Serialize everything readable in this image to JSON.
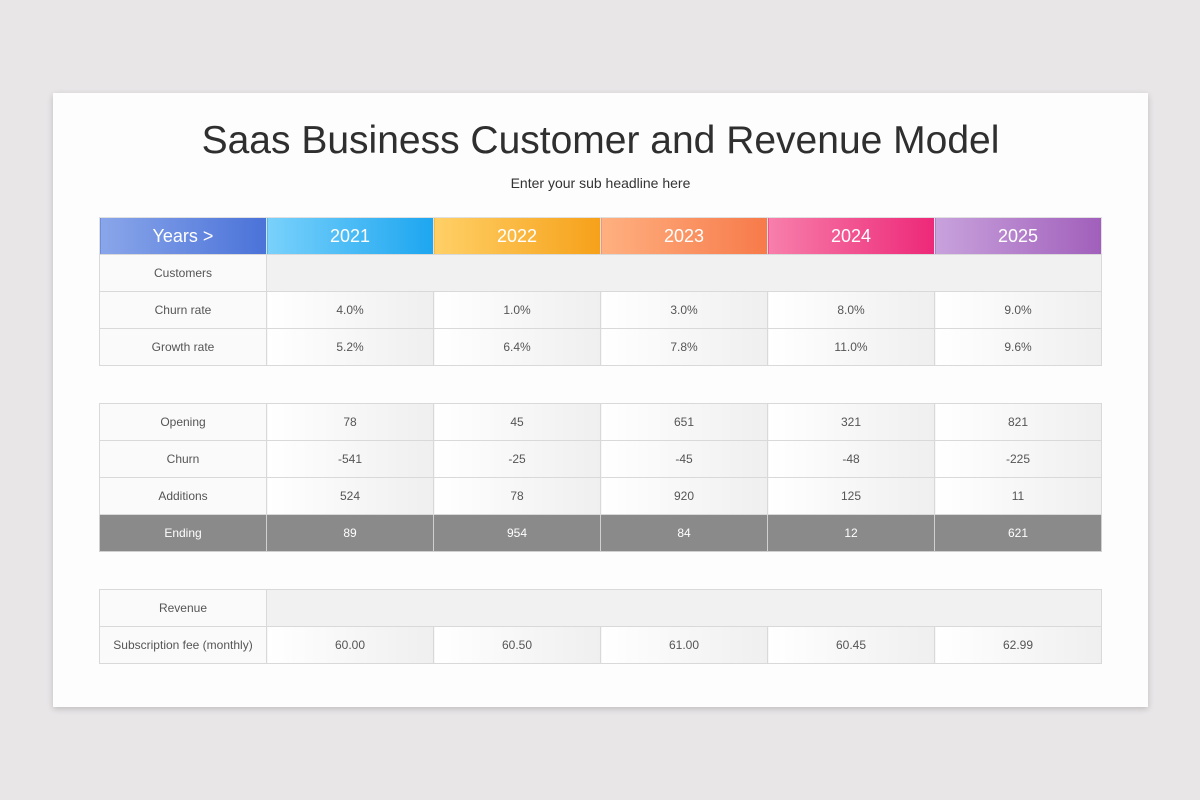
{
  "header": {
    "title": "Saas Business Customer and Revenue Model",
    "subtitle": "Enter your sub headline here"
  },
  "years_header": {
    "label": "Years >",
    "label_gradient": [
      "#8aa6ea",
      "#4a72d8"
    ],
    "years": [
      {
        "label": "2021",
        "gradient": [
          "#79d1fb",
          "#1da6f0"
        ]
      },
      {
        "label": "2022",
        "gradient": [
          "#ffd067",
          "#f6a11a"
        ]
      },
      {
        "label": "2023",
        "gradient": [
          "#ffb080",
          "#f77a4a"
        ]
      },
      {
        "label": "2024",
        "gradient": [
          "#f77fab",
          "#ed2878"
        ]
      },
      {
        "label": "2025",
        "gradient": [
          "#c8a2dc",
          "#a15fbb"
        ]
      }
    ]
  },
  "customers_table": {
    "group_label": "Customers",
    "rows": [
      {
        "label": "Churn rate",
        "values": [
          "4.0%",
          "1.0%",
          "3.0%",
          "8.0%",
          "9.0%"
        ]
      },
      {
        "label": "Growth rate",
        "values": [
          "5.2%",
          "6.4%",
          "7.8%",
          "11.0%",
          "9.6%"
        ]
      }
    ]
  },
  "counts_table": {
    "rows": [
      {
        "label": "Opening",
        "values": [
          "78",
          "45",
          "651",
          "321",
          "821"
        ]
      },
      {
        "label": "Churn",
        "values": [
          "-541",
          "-25",
          "-45",
          "-48",
          "-225"
        ]
      },
      {
        "label": "Additions",
        "values": [
          "524",
          "78",
          "920",
          "125",
          "11"
        ]
      },
      {
        "label": "Ending",
        "values": [
          "89",
          "954",
          "84",
          "12",
          "621"
        ]
      }
    ],
    "ending_color": "#8a8a8a"
  },
  "revenue_table": {
    "group_label": "Revenue",
    "rows": [
      {
        "label": "Subscription fee (monthly)",
        "values": [
          "60.00",
          "60.50",
          "61.00",
          "60.45",
          "62.99"
        ]
      }
    ]
  }
}
